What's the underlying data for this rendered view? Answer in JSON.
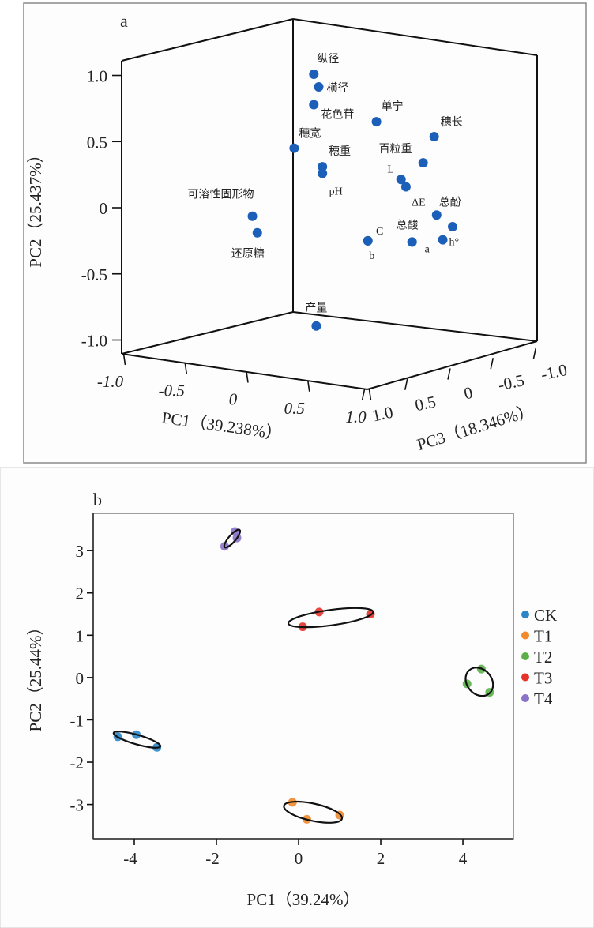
{
  "chart_data": [
    {
      "type": "scatter3d",
      "panel_label": "a",
      "point_color": "#1c5fb8",
      "axes": {
        "pc1": {
          "label": "PC1（39.238%）",
          "ticks": [
            "-1.0",
            "-0.5",
            "0",
            "0.5",
            "1.0"
          ],
          "tick_values": [
            -1,
            -0.5,
            0,
            0.5,
            1
          ]
        },
        "pc2": {
          "label": "PC2（25.437%）",
          "ticks": [
            "1.0",
            "0.5",
            "0",
            "-0.5",
            "-1.0"
          ],
          "tick_values": [
            1,
            0.5,
            0,
            -0.5,
            -1
          ]
        },
        "pc3": {
          "label": "PC3（18.346%）",
          "ticks": [
            "1.0",
            "0.5",
            "0",
            "-0.5",
            "-1.0"
          ],
          "tick_values": [
            1,
            0.5,
            0,
            -0.5,
            -1
          ]
        }
      },
      "points": [
        {
          "label": "纵径",
          "pc1": -0.13,
          "pc2": 0.96
        },
        {
          "label": "横径",
          "pc1": -0.09,
          "pc2": 0.87
        },
        {
          "label": "花色苷",
          "pc1": -0.13,
          "pc2": 0.73
        },
        {
          "label": "单宁",
          "pc1": 0.38,
          "pc2": 0.67
        },
        {
          "label": "穗长",
          "pc1": 0.85,
          "pc2": 0.62
        },
        {
          "label": "穗宽",
          "pc1": -0.29,
          "pc2": 0.38
        },
        {
          "label": "百粒重",
          "pc1": 0.76,
          "pc2": 0.41
        },
        {
          "label": "穗重",
          "pc1": -0.06,
          "pc2": 0.27
        },
        {
          "label": "pH",
          "pc1": -0.06,
          "pc2": 0.22
        },
        {
          "label": "L",
          "pc1": 0.58,
          "pc2": 0.26
        },
        {
          "label": "ΔE",
          "pc1": 0.62,
          "pc2": 0.21
        },
        {
          "label": "总酚",
          "pc1": 0.87,
          "pc2": 0.03
        },
        {
          "label": "",
          "pc1": 1.0,
          "pc2": -0.04
        },
        {
          "label": "总酸",
          "pc1": 0.67,
          "pc2": -0.2
        },
        {
          "label": "a",
          "pc1": 0.67,
          "pc2": -0.2
        },
        {
          "label": "h°",
          "pc1": 0.92,
          "pc2": -0.15
        },
        {
          "label": "C",
          "pc1": 0.31,
          "pc2": -0.24
        },
        {
          "label": "b",
          "pc1": 0.31,
          "pc2": -0.24
        },
        {
          "label": "可溶性固形物",
          "pc1": -0.63,
          "pc2": -0.18
        },
        {
          "label": "还原糖",
          "pc1": -0.59,
          "pc2": -0.3
        },
        {
          "label": "产量",
          "pc1": -0.11,
          "pc2": -0.94
        }
      ]
    },
    {
      "type": "scatter",
      "panel_label": "b",
      "xlabel": "PC1（39.24%）",
      "ylabel": "PC2（25.44%）",
      "xlim": [
        -5.0,
        5.23
      ],
      "ylim": [
        -3.81,
        3.88
      ],
      "xticks": [
        -4,
        -2,
        0,
        2,
        4
      ],
      "xtick_labels": [
        "-4",
        "-2",
        "0",
        "2",
        "4"
      ],
      "yticks": [
        3,
        2,
        1,
        0,
        -1,
        -2,
        -3
      ],
      "ytick_labels": [
        "3",
        "2",
        "1",
        "0",
        "-1",
        "-2",
        "-3"
      ],
      "grid": false,
      "legend": "right",
      "ellipses": true,
      "series": [
        {
          "name": "CK",
          "color": "#2b86c8",
          "points": [
            [
              -4.4,
              -1.4
            ],
            [
              -3.95,
              -1.35
            ],
            [
              -3.45,
              -1.65
            ]
          ]
        },
        {
          "name": "T1",
          "color": "#f08a2c",
          "points": [
            [
              -0.15,
              -2.95
            ],
            [
              0.2,
              -3.35
            ],
            [
              1.0,
              -3.25
            ]
          ]
        },
        {
          "name": "T2",
          "color": "#5cb04a",
          "points": [
            [
              4.1,
              -0.15
            ],
            [
              4.45,
              0.2
            ],
            [
              4.65,
              -0.35
            ]
          ]
        },
        {
          "name": "T3",
          "color": "#e5332a",
          "points": [
            [
              0.1,
              1.2
            ],
            [
              0.5,
              1.55
            ],
            [
              1.75,
              1.5
            ]
          ]
        },
        {
          "name": "T4",
          "color": "#8a72c6",
          "points": [
            [
              -1.8,
              3.1
            ],
            [
              -1.55,
              3.45
            ],
            [
              -1.5,
              3.3
            ]
          ]
        }
      ]
    }
  ]
}
